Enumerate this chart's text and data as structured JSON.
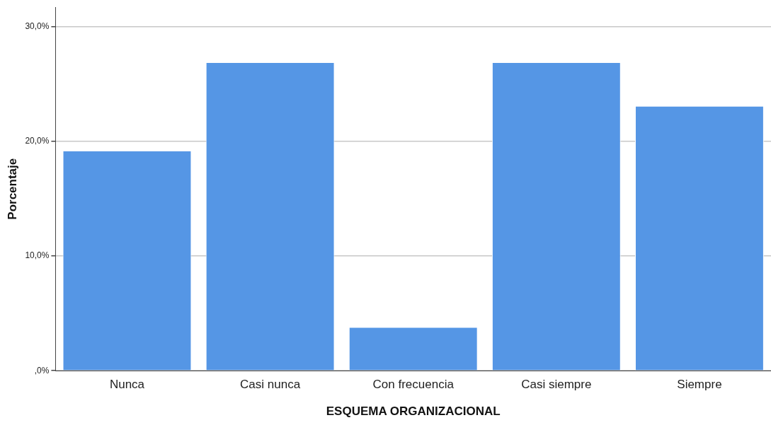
{
  "chart_data": {
    "type": "bar",
    "xlabel": "ESQUEMA ORGANIZACIONAL",
    "ylabel": "Porcentaje",
    "categories": [
      "Nunca",
      "Casi nunca",
      "Con frecuencia",
      "Casi siempre",
      "Siempre"
    ],
    "values": [
      19.2,
      26.9,
      3.8,
      26.9,
      23.1
    ],
    "color": "#5596e5",
    "ylim": [
      0,
      31.7
    ],
    "yticks": [
      {
        "value": 0,
        "label": ",0%"
      },
      {
        "value": 10,
        "label": "10,0%"
      },
      {
        "value": 20,
        "label": "20,0%"
      },
      {
        "value": 30,
        "label": "30,0%"
      }
    ],
    "grid": "y",
    "legend": false
  }
}
